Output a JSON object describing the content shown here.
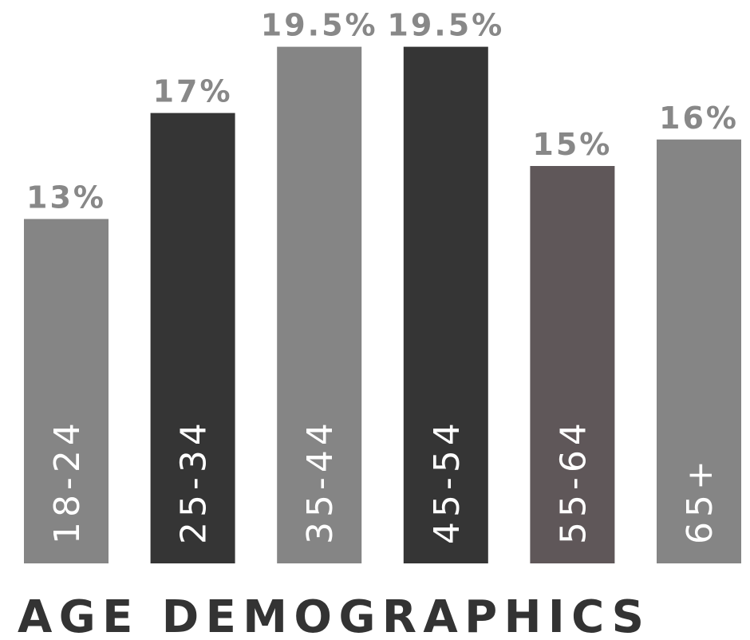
{
  "chart_data": {
    "type": "bar",
    "title": "AGE DEMOGRAPHICS",
    "categories": [
      "18-24",
      "25-34",
      "35-44",
      "45-54",
      "55-64",
      "65+"
    ],
    "values": [
      13,
      17,
      19.5,
      19.5,
      15,
      16
    ],
    "value_labels": [
      "13%",
      "17%",
      "19.5%",
      "19.5%",
      "15%",
      "16%"
    ],
    "colors": [
      "#858585",
      "#353535",
      "#858585",
      "#353535",
      "#5f5759",
      "#858585"
    ]
  }
}
